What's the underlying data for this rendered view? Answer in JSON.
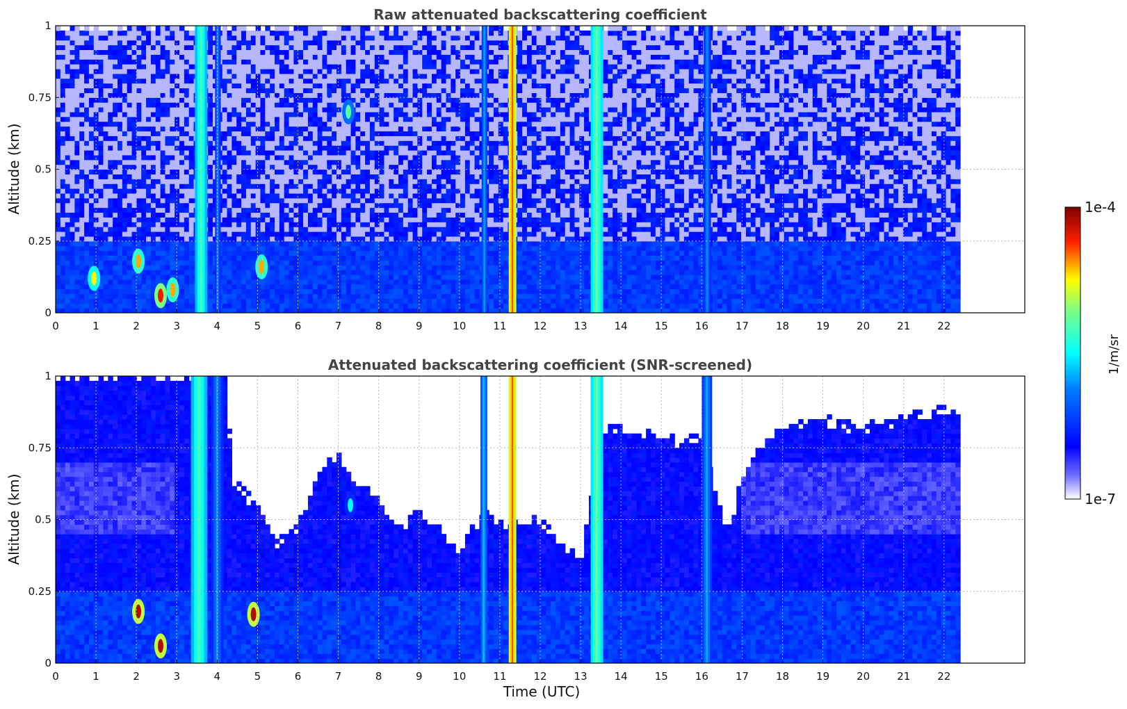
{
  "chart_data": [
    {
      "type": "heatmap",
      "title": "Raw attenuated backscattering coefficient",
      "xlabel": "",
      "ylabel": "Altitude (km)",
      "xlim": [
        0,
        24
      ],
      "ylim": [
        0,
        1
      ],
      "x_ticks": [
        "0",
        "1",
        "2",
        "3",
        "4",
        "5",
        "6",
        "7",
        "8",
        "9",
        "10",
        "11",
        "12",
        "13",
        "14",
        "15",
        "16",
        "17",
        "18",
        "19",
        "20",
        "21",
        "22"
      ],
      "y_ticks": [
        "0",
        "0.25",
        "0.5",
        "0.75",
        "1"
      ],
      "data_extent_x": [
        0,
        22.4
      ],
      "grid": true,
      "screened": false,
      "features": [
        {
          "x": [
            3.45,
            3.75
          ],
          "ymax": 1.0,
          "level": 0.58
        },
        {
          "x": [
            3.95,
            4.08
          ],
          "ymax": 1.0,
          "level": 0.4
        },
        {
          "x": [
            10.55,
            10.68
          ],
          "ymax": 1.0,
          "level": 0.42
        },
        {
          "x": [
            11.22,
            11.4
          ],
          "ymax": 1.0,
          "level": 0.85
        },
        {
          "x": [
            13.25,
            13.55
          ],
          "ymax": 1.0,
          "level": 0.62
        },
        {
          "x": [
            16.05,
            16.22
          ],
          "ymax": 1.0,
          "level": 0.4
        }
      ],
      "blobs": [
        {
          "x": 0.95,
          "y": 0.12,
          "level": 0.75
        },
        {
          "x": 2.05,
          "y": 0.18,
          "level": 0.8
        },
        {
          "x": 2.6,
          "y": 0.06,
          "level": 0.9
        },
        {
          "x": 2.9,
          "y": 0.08,
          "level": 0.8
        },
        {
          "x": 5.1,
          "y": 0.16,
          "level": 0.8
        },
        {
          "x": 7.25,
          "y": 0.7,
          "level": 0.6
        }
      ]
    },
    {
      "type": "heatmap",
      "title": "Attenuated backscattering coefficient (SNR-screened)",
      "xlabel": "Time (UTC)",
      "ylabel": "Altitude (km)",
      "xlim": [
        0,
        24
      ],
      "ylim": [
        0,
        1
      ],
      "x_ticks": [
        "0",
        "1",
        "2",
        "3",
        "4",
        "5",
        "6",
        "7",
        "8",
        "9",
        "10",
        "11",
        "12",
        "13",
        "14",
        "15",
        "16",
        "17",
        "18",
        "19",
        "20",
        "21",
        "22"
      ],
      "y_ticks": [
        "0",
        "0.25",
        "0.5",
        "0.75",
        "1"
      ],
      "data_extent_x": [
        0,
        22.4
      ],
      "grid": true,
      "screened": true,
      "features": [
        {
          "x": [
            3.35,
            3.75
          ],
          "ymax": 1.0,
          "level": 0.58
        },
        {
          "x": [
            3.85,
            4.15
          ],
          "ymax": 1.0,
          "level": 0.4
        },
        {
          "x": [
            10.52,
            10.68
          ],
          "ymax": 1.0,
          "level": 0.45
        },
        {
          "x": [
            11.22,
            11.4
          ],
          "ymax": 1.0,
          "level": 0.85
        },
        {
          "x": [
            13.25,
            13.55
          ],
          "ymax": 1.0,
          "level": 0.62
        },
        {
          "x": [
            16.0,
            16.25
          ],
          "ymax": 1.0,
          "level": 0.42
        }
      ],
      "blobs": [
        {
          "x": 2.05,
          "y": 0.18,
          "level": 0.95
        },
        {
          "x": 2.6,
          "y": 0.06,
          "level": 0.95
        },
        {
          "x": 4.9,
          "y": 0.17,
          "level": 0.95
        },
        {
          "x": 7.3,
          "y": 0.55,
          "level": 0.5
        }
      ],
      "signal_top_km": [
        [
          0.0,
          1.0
        ],
        [
          1.0,
          1.0
        ],
        [
          2.0,
          1.0
        ],
        [
          3.0,
          1.0
        ],
        [
          3.4,
          1.0
        ],
        [
          4.2,
          1.0
        ],
        [
          4.4,
          0.62
        ],
        [
          5.0,
          0.55
        ],
        [
          5.5,
          0.42
        ],
        [
          6.0,
          0.48
        ],
        [
          6.5,
          0.65
        ],
        [
          7.0,
          0.72
        ],
        [
          7.5,
          0.62
        ],
        [
          8.0,
          0.58
        ],
        [
          8.5,
          0.46
        ],
        [
          9.0,
          0.52
        ],
        [
          9.5,
          0.46
        ],
        [
          10.0,
          0.4
        ],
        [
          10.6,
          0.52
        ],
        [
          11.2,
          0.48
        ],
        [
          12.0,
          0.5
        ],
        [
          12.5,
          0.42
        ],
        [
          13.0,
          0.36
        ],
        [
          13.5,
          0.8
        ],
        [
          14.0,
          0.82
        ],
        [
          15.0,
          0.78
        ],
        [
          16.0,
          0.78
        ],
        [
          16.6,
          0.45
        ],
        [
          17.2,
          0.72
        ],
        [
          18.0,
          0.82
        ],
        [
          19.0,
          0.85
        ],
        [
          20.0,
          0.82
        ],
        [
          21.0,
          0.86
        ],
        [
          22.4,
          0.88
        ]
      ]
    }
  ],
  "colorbar": {
    "label": "1/m/sr",
    "max_label": "1e-4",
    "min_label": "1e-7",
    "colormap": "jet-like",
    "colors": [
      "#ffffff",
      "#0000ff",
      "#00ffff",
      "#ffff00",
      "#ff0000",
      "#800000"
    ]
  }
}
